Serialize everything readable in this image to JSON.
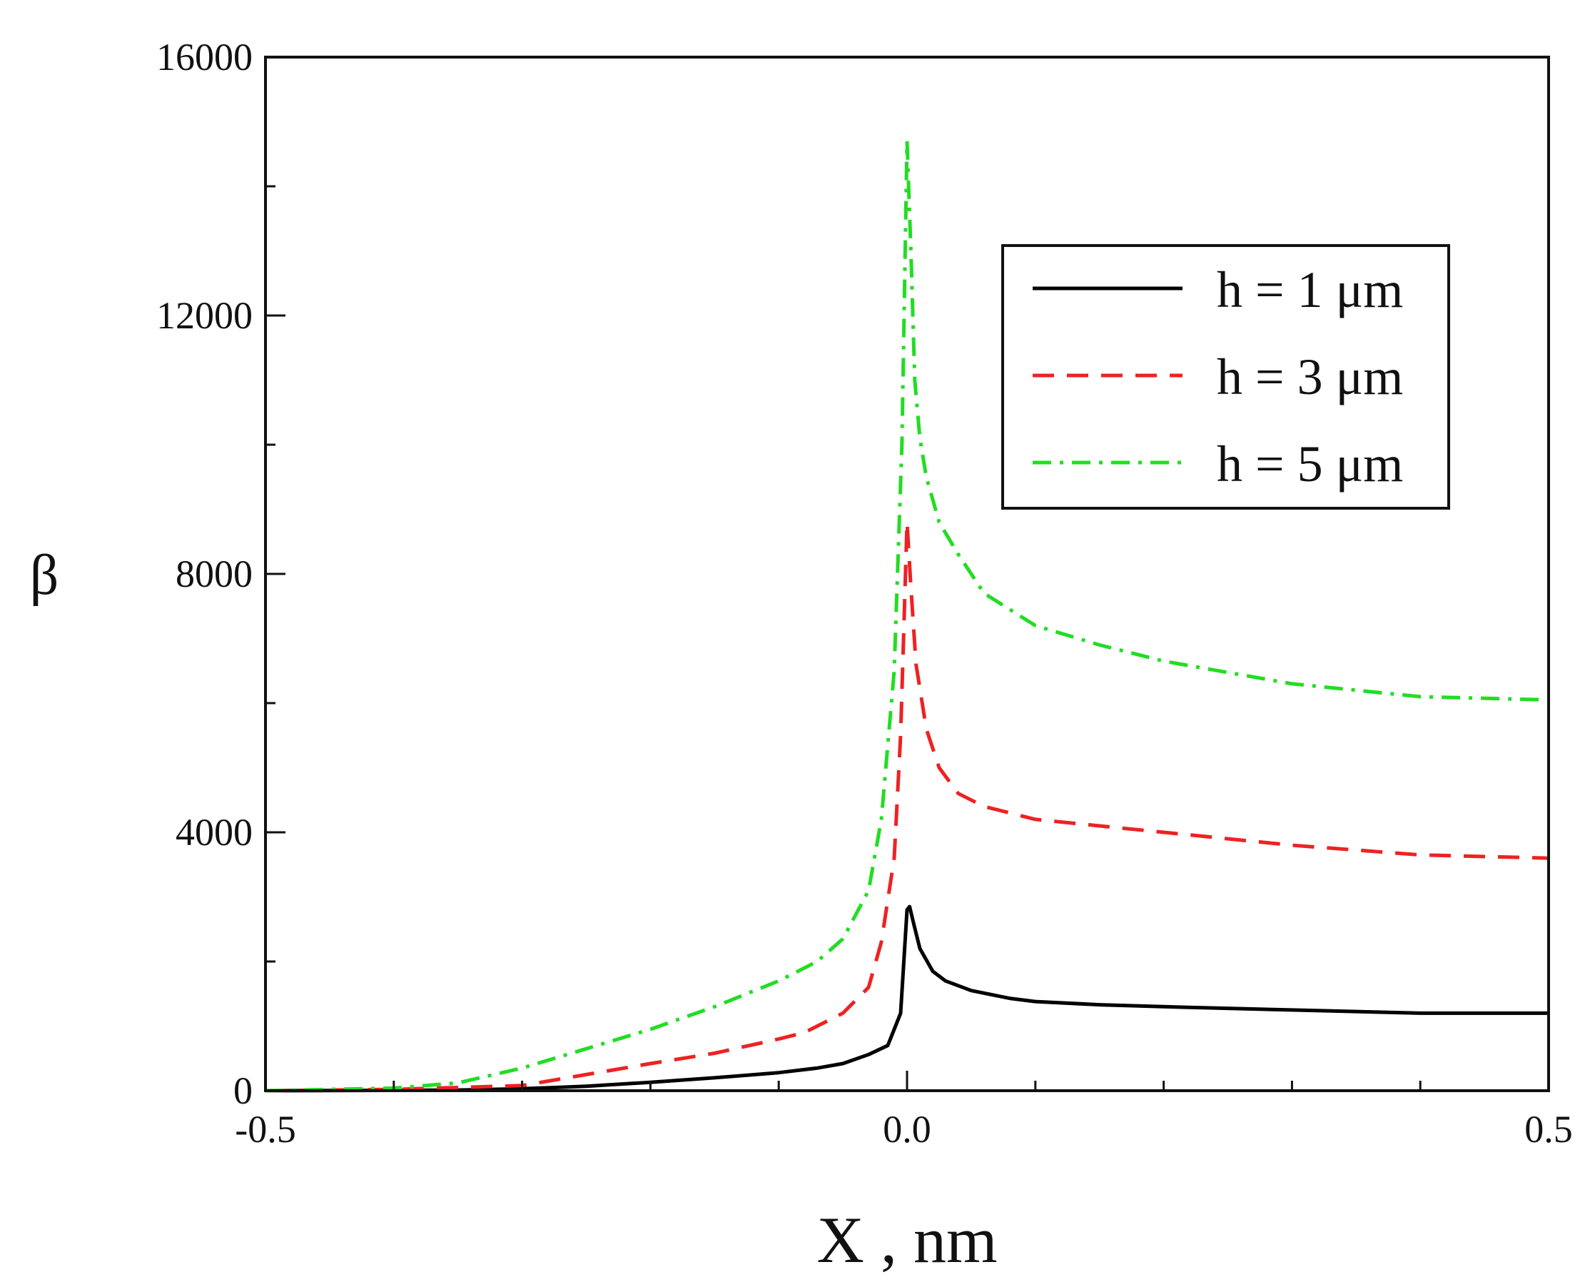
{
  "chart_data": {
    "type": "line",
    "title": "",
    "xlabel": "X , nm",
    "ylabel": "β",
    "xlim": [
      -0.5,
      0.5
    ],
    "ylim": [
      0,
      16000
    ],
    "xticks": [
      -0.5,
      0.0,
      0.5
    ],
    "xtick_labels": [
      "-0.5",
      "0.0",
      "0.5"
    ],
    "x_minor_step": 0.1,
    "yticks": [
      0,
      4000,
      8000,
      12000,
      16000
    ],
    "ytick_labels": [
      "0",
      "4000",
      "8000",
      "12000",
      "16000"
    ],
    "y_minor_step": 2000,
    "grid": false,
    "legend_position": "top-right",
    "series": [
      {
        "name": "h = 1 μm",
        "color": "#000000",
        "style": "solid",
        "x": [
          -0.5,
          -0.4,
          -0.35,
          -0.3,
          -0.25,
          -0.2,
          -0.15,
          -0.1,
          -0.07,
          -0.05,
          -0.03,
          -0.015,
          -0.005,
          0.0,
          0.002,
          0.005,
          0.01,
          0.02,
          0.03,
          0.05,
          0.08,
          0.1,
          0.15,
          0.2,
          0.3,
          0.4,
          0.5
        ],
        "y": [
          0,
          5,
          10,
          30,
          70,
          130,
          200,
          280,
          350,
          420,
          560,
          700,
          1200,
          2800,
          2850,
          2600,
          2200,
          1850,
          1700,
          1550,
          1430,
          1380,
          1330,
          1300,
          1250,
          1200,
          1200
        ]
      },
      {
        "name": "h = 3 μm",
        "color": "#ee2222",
        "style": "dashed",
        "x": [
          -0.5,
          -0.4,
          -0.3,
          -0.25,
          -0.2,
          -0.15,
          -0.1,
          -0.08,
          -0.05,
          -0.03,
          -0.02,
          -0.01,
          -0.005,
          0.0,
          0.003,
          0.007,
          0.015,
          0.025,
          0.04,
          0.06,
          0.08,
          0.1,
          0.15,
          0.2,
          0.3,
          0.4,
          0.5
        ],
        "y": [
          0,
          20,
          80,
          250,
          420,
          580,
          800,
          900,
          1200,
          1600,
          2300,
          3600,
          5500,
          8800,
          7800,
          6600,
          5600,
          5000,
          4600,
          4400,
          4300,
          4200,
          4100,
          4000,
          3800,
          3650,
          3600
        ]
      },
      {
        "name": "h = 5 μm",
        "color": "#22dd22",
        "style": "dashdot",
        "x": [
          -0.5,
          -0.4,
          -0.35,
          -0.3,
          -0.25,
          -0.2,
          -0.15,
          -0.1,
          -0.07,
          -0.05,
          -0.03,
          -0.02,
          -0.01,
          -0.004,
          0.0,
          0.003,
          0.006,
          0.01,
          0.015,
          0.025,
          0.04,
          0.06,
          0.1,
          0.15,
          0.2,
          0.3,
          0.4,
          0.5
        ],
        "y": [
          0,
          40,
          120,
          350,
          650,
          950,
          1300,
          1700,
          2000,
          2350,
          3100,
          4200,
          6500,
          10000,
          14700,
          13000,
          11000,
          10100,
          9500,
          8800,
          8300,
          7700,
          7200,
          6900,
          6650,
          6300,
          6100,
          6050
        ]
      }
    ]
  }
}
